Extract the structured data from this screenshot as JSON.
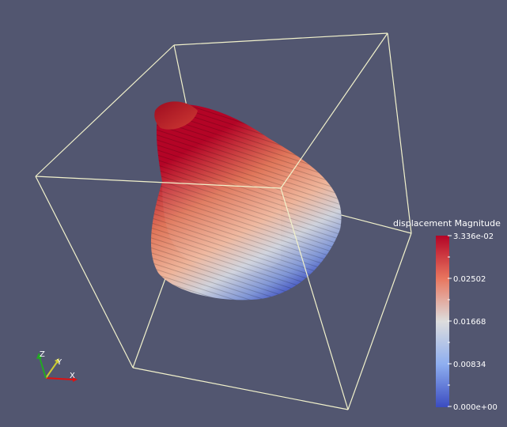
{
  "colorbar": {
    "title": "displacement Magnitude",
    "labels": [
      "3.336e-02",
      "0.02502",
      "0.01668",
      "0.00834",
      "0.000e+00"
    ],
    "colors": {
      "high": "#b40426",
      "mid": "#dddddd",
      "low": "#3b4cc0"
    }
  },
  "axes": {
    "x": "X",
    "y": "Y",
    "z": "Z"
  },
  "background_color": "#525670",
  "outline_color": "#f2f2cc"
}
